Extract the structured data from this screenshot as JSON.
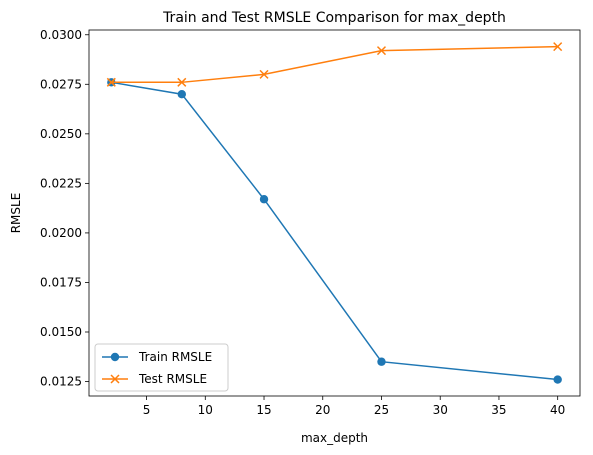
{
  "chart_data": {
    "type": "line",
    "title": "Train and Test RMSLE Comparison for max_depth",
    "xlabel": "max_depth",
    "ylabel": "RMSLE",
    "x": [
      2,
      8,
      15,
      25,
      40
    ],
    "xlim": [
      0.1,
      41.9
    ],
    "ylim": [
      0.01177,
      0.03024
    ],
    "xticks": [
      5,
      10,
      15,
      20,
      25,
      30,
      35,
      40
    ],
    "yticks": [
      0.0125,
      0.015,
      0.0175,
      0.02,
      0.0225,
      0.025,
      0.0275,
      0.03
    ],
    "ytick_labels": [
      "0.0125",
      "0.0150",
      "0.0175",
      "0.0200",
      "0.0225",
      "0.0250",
      "0.0275",
      "0.0300"
    ],
    "grid": false,
    "legend_position": "lower-left",
    "series": [
      {
        "name": "Train RMSLE",
        "values": [
          0.0276,
          0.027,
          0.0217,
          0.0135,
          0.0126
        ],
        "color": "#1f77b4",
        "marker": "circle"
      },
      {
        "name": "Test RMSLE",
        "values": [
          0.0276,
          0.0276,
          0.028,
          0.0292,
          0.0294
        ],
        "color": "#ff7f0e",
        "marker": "x"
      }
    ]
  }
}
